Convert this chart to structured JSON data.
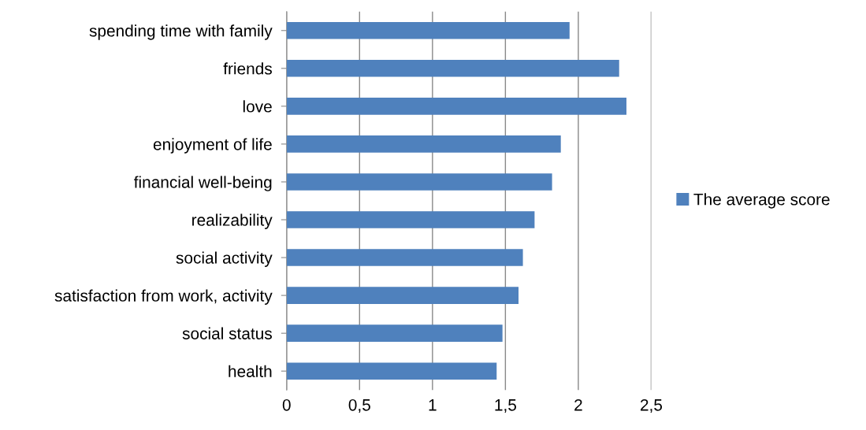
{
  "chart_data": {
    "type": "bar",
    "orientation": "horizontal",
    "categories": [
      "spending time with family",
      "friends",
      "love",
      "enjoyment of life",
      "financial well-being",
      "realizability",
      "social activity",
      "satisfaction from work, activity",
      "social status",
      "health"
    ],
    "series": [
      {
        "name": "The average score",
        "color": "#4f81bd",
        "values": [
          1.94,
          2.28,
          2.33,
          1.88,
          1.82,
          1.7,
          1.62,
          1.59,
          1.48,
          1.44
        ]
      }
    ],
    "xlim": [
      0,
      2.5
    ],
    "xticks": [
      0,
      {
        "value": 0.5,
        "label": "0,5"
      },
      1,
      {
        "value": 1.5,
        "label": "1,5"
      },
      2,
      {
        "value": 2.5,
        "label": "2,5"
      }
    ],
    "grid": "x",
    "legend": "right"
  }
}
